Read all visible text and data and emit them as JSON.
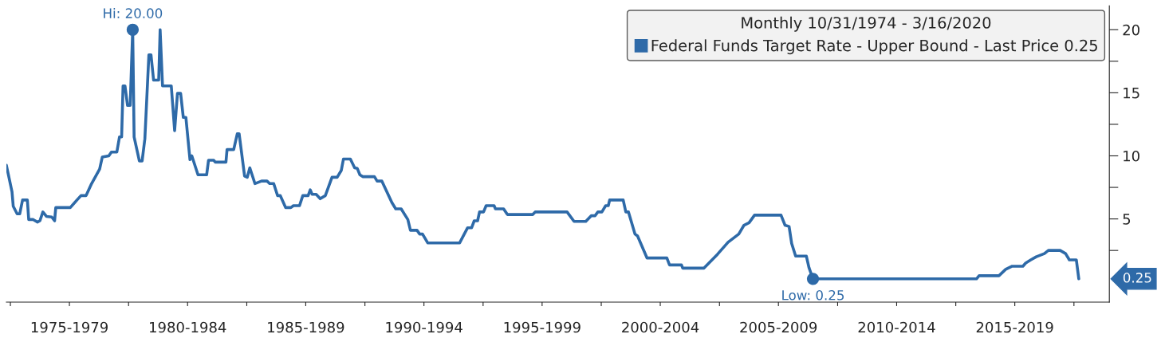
{
  "chart_data": {
    "type": "line",
    "legend_title": "Monthly 10/31/1974 - 3/16/2020",
    "legend": "top right",
    "x": [
      "1974-10-31",
      "1975-01-26",
      "1975-02-14",
      "1975-04-15",
      "1975-05-25",
      "1975-07-08",
      "1975-09-20",
      "1975-10-11",
      "1975-12-20",
      "1976-02-21",
      "1976-04-01",
      "1976-05-17",
      "1976-07-11",
      "1976-10-01",
      "1976-11-14",
      "1976-12-02",
      "1977-07-15",
      "1977-10-26",
      "1977-12-27",
      "1978-03-16",
      "1978-06-09",
      "1978-10-11",
      "1978-11-21",
      "1979-03-02",
      "1979-04-11",
      "1979-07-04",
      "1979-08-14",
      "1979-09-16",
      "1979-10-08",
      "1979-11-07",
      "1979-12-16",
      "1980-01-26",
      "1980-03-05",
      "1980-03-27",
      "1980-06-16",
      "1980-07-29",
      "1980-09-09",
      "1980-11-10",
      "1980-12-13",
      "1981-01-22",
      "1981-04-11",
      "1981-05-03",
      "1981-06-09",
      "1981-10-22",
      "1981-12-13",
      "1982-01-26",
      "1982-03-16",
      "1982-04-26",
      "1982-06-05",
      "1982-08-07",
      "1982-09-05",
      "1982-12-09",
      "1983-04-22",
      "1983-05-21",
      "1983-08-10",
      "1983-09-02",
      "1984-02-14",
      "1984-03-02",
      "1984-06-13",
      "1984-08-07",
      "1984-09-05",
      "1984-11-28",
      "1985-01-08",
      "1985-02-17",
      "1985-05-07",
      "1985-08-17",
      "1985-11-10",
      "1985-12-20",
      "1986-02-21",
      "1986-04-22",
      "1986-06-02",
      "1986-08-25",
      "1986-11-14",
      "1986-12-23",
      "1987-03-27",
      "1987-05-17",
      "1987-08-07",
      "1987-09-09",
      "1987-10-08",
      "1987-12-09",
      "1988-02-10",
      "1988-04-29",
      "1988-08-10",
      "1988-10-29",
      "1989-01-01",
      "1989-02-03",
      "1989-05-21",
      "1989-07-26",
      "1989-09-05",
      "1989-10-15",
      "1989-11-28",
      "1990-05-28",
      "1990-07-08",
      "1990-09-20",
      "1991-02-21",
      "1991-04-22",
      "1991-07-15",
      "1991-10-26",
      "1991-12-05",
      "1992-03-16",
      "1992-04-26",
      "1992-06-09",
      "1992-08-28",
      "1994-01-04",
      "1994-05-07",
      "1994-07-08",
      "1994-08-17",
      "1994-10-08",
      "1994-11-07",
      "1995-01-08",
      "1995-02-17",
      "1995-06-20",
      "1995-07-11",
      "1995-11-14",
      "1996-01-11",
      "1997-02-07",
      "1997-03-16",
      "1998-07-22",
      "1998-11-07",
      "1999-05-07",
      "1999-07-29",
      "1999-09-27",
      "1999-11-10",
      "2000-01-11",
      "2000-03-09",
      "2000-04-19",
      "2000-05-10",
      "2000-12-05",
      "2001-01-15",
      "2001-02-25",
      "2001-06-05",
      "2001-07-15",
      "2001-12-09",
      "2002-10-11",
      "2002-11-21",
      "2003-05-25",
      "2003-06-13",
      "2004-05-07",
      "2004-12-02",
      "2005-05-14",
      "2005-10-26",
      "2006-01-15",
      "2006-04-04",
      "2006-06-27",
      "2007-08-10",
      "2007-10-11",
      "2007-12-13",
      "2008-01-22",
      "2008-03-23",
      "2008-09-05",
      "2008-10-15",
      "2008-12-16",
      "2015-11-17",
      "2015-12-27",
      "2016-10-29",
      "2017-02-10",
      "2017-05-21",
      "2017-11-03",
      "2017-12-16",
      "2018-03-05",
      "2018-05-28",
      "2018-10-01",
      "2018-12-02",
      "2019-06-02",
      "2019-08-25",
      "2019-10-22",
      "2020-02-07",
      "2020-03-16"
    ],
    "series": [
      {
        "name": "Federal Funds Target Rate - Upper Bound - Last Price 0.25",
        "color": "#2e6aa8",
        "values": [
          9.25,
          7.15,
          6.0,
          5.4,
          5.4,
          6.5,
          6.5,
          4.95,
          4.95,
          4.75,
          4.85,
          5.55,
          5.2,
          5.15,
          4.85,
          5.9,
          5.9,
          6.5,
          6.85,
          6.85,
          7.8,
          8.95,
          9.9,
          10.0,
          10.3,
          10.3,
          11.5,
          11.5,
          15.55,
          15.55,
          14.0,
          14.0,
          20.0,
          11.5,
          9.6,
          9.6,
          11.35,
          18.0,
          18.0,
          16.0,
          16.0,
          20.0,
          15.55,
          15.55,
          12.0,
          14.95,
          14.95,
          13.05,
          13.05,
          9.7,
          10.0,
          8.5,
          8.5,
          9.65,
          9.65,
          9.5,
          9.5,
          10.5,
          10.5,
          11.75,
          11.75,
          8.4,
          8.3,
          9.05,
          7.8,
          8.0,
          8.0,
          7.8,
          7.8,
          6.85,
          6.85,
          5.9,
          5.9,
          6.05,
          6.05,
          6.85,
          6.85,
          7.3,
          6.95,
          6.95,
          6.6,
          6.85,
          8.3,
          8.3,
          8.85,
          9.75,
          9.75,
          9.05,
          9.0,
          8.5,
          8.35,
          8.35,
          8.0,
          8.0,
          6.3,
          5.8,
          5.8,
          4.95,
          4.1,
          4.1,
          3.8,
          3.8,
          3.1,
          3.1,
          4.3,
          4.3,
          4.85,
          4.85,
          5.55,
          5.55,
          6.05,
          6.05,
          5.8,
          5.8,
          5.35,
          5.35,
          5.55,
          5.55,
          4.8,
          4.8,
          5.25,
          5.25,
          5.55,
          5.55,
          6.05,
          6.05,
          6.5,
          6.5,
          5.55,
          5.55,
          3.8,
          3.65,
          1.9,
          1.9,
          1.35,
          1.35,
          1.1,
          1.1,
          2.2,
          3.15,
          3.8,
          4.5,
          4.7,
          5.3,
          5.3,
          4.5,
          4.4,
          3.05,
          2.05,
          2.05,
          1.15,
          0.25,
          0.25,
          0.5,
          0.5,
          1.0,
          1.25,
          1.25,
          1.5,
          1.75,
          2.0,
          2.25,
          2.5,
          2.5,
          2.25,
          1.75,
          1.75,
          0.25
        ]
      }
    ],
    "xlim": [
      "1974-10-31",
      "2021-07-01"
    ],
    "xticks": [
      {
        "value": "1975-01-01",
        "label": null
      },
      {
        "value": "1977-07-01",
        "label": "1975-1979"
      },
      {
        "value": "1980-01-01",
        "label": null
      },
      {
        "value": "1982-07-01",
        "label": "1980-1984"
      },
      {
        "value": "1985-01-01",
        "label": null
      },
      {
        "value": "1987-07-01",
        "label": "1985-1989"
      },
      {
        "value": "1990-01-01",
        "label": null
      },
      {
        "value": "1992-07-01",
        "label": "1990-1994"
      },
      {
        "value": "1995-01-01",
        "label": null
      },
      {
        "value": "1997-07-01",
        "label": "1995-1999"
      },
      {
        "value": "2000-01-01",
        "label": null
      },
      {
        "value": "2002-07-01",
        "label": "2000-2004"
      },
      {
        "value": "2005-01-01",
        "label": null
      },
      {
        "value": "2007-07-01",
        "label": "2005-2009"
      },
      {
        "value": "2010-01-01",
        "label": null
      },
      {
        "value": "2012-07-01",
        "label": "2010-2014"
      },
      {
        "value": "2015-01-01",
        "label": null
      },
      {
        "value": "2017-07-01",
        "label": "2015-2019"
      },
      {
        "value": "2020-01-01",
        "label": null
      }
    ],
    "ylim": [
      -1.6,
      21.9
    ],
    "yticks": [
      {
        "value": 2.5,
        "label": null
      },
      5,
      {
        "value": 7.5,
        "label": null
      },
      10,
      {
        "value": 12.5,
        "label": null
      },
      15,
      {
        "value": 17.5,
        "label": null
      },
      20
    ],
    "annotations": [
      {
        "text": "Hi: 20.00",
        "x": "1980-03-05",
        "y": 20.0
      },
      {
        "text": "Low: 0.25",
        "x": "2008-12-16",
        "y": 0.25
      },
      "0.25"
    ],
    "grid": false,
    "marker": "none",
    "line_style": "solid"
  }
}
